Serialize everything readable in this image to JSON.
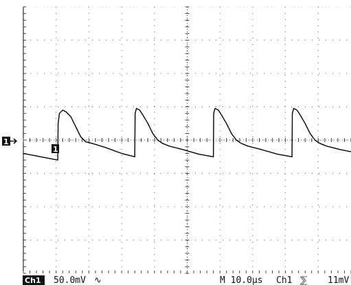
{
  "chart_data": {
    "type": "line",
    "title": "",
    "xlabel": "",
    "ylabel": "",
    "grid": true,
    "divisions": {
      "x": 10,
      "y": 8
    },
    "xlim_div": [
      0,
      10
    ],
    "ylim_div": [
      -4,
      4
    ],
    "series": [
      {
        "x_div": [
          0.0,
          1.05,
          1.06,
          1.1,
          1.2,
          1.3,
          1.45,
          1.6,
          1.75,
          1.9,
          2.1,
          2.5,
          3.0,
          3.4,
          3.41,
          3.45,
          3.55,
          3.65,
          3.8,
          3.95,
          4.1,
          4.25,
          4.45,
          4.85,
          5.35,
          5.8,
          5.81,
          5.85,
          5.95,
          6.05,
          6.2,
          6.35,
          6.5,
          6.65,
          6.85,
          7.25,
          7.75,
          8.2,
          8.21,
          8.25,
          8.35,
          8.45,
          8.6,
          8.75,
          8.9,
          9.05,
          9.25,
          9.65,
          10.0
        ],
        "y_div": [
          -0.4,
          -0.6,
          0.5,
          0.8,
          0.9,
          0.85,
          0.7,
          0.4,
          0.1,
          -0.05,
          -0.1,
          -0.22,
          -0.4,
          -0.5,
          0.8,
          0.95,
          0.9,
          0.75,
          0.5,
          0.2,
          0.0,
          -0.1,
          -0.18,
          -0.28,
          -0.42,
          -0.5,
          0.8,
          0.95,
          0.9,
          0.75,
          0.5,
          0.2,
          0.0,
          -0.1,
          -0.18,
          -0.28,
          -0.42,
          -0.5,
          0.8,
          0.95,
          0.9,
          0.75,
          0.5,
          0.2,
          0.0,
          -0.1,
          -0.18,
          -0.28,
          -0.35
        ]
      }
    ],
    "markers": {
      "channel_ground": "1",
      "trigger_point": "1"
    }
  },
  "status_bar": {
    "channel_label": "Ch1",
    "scale": "50.0mV",
    "coupling_symbol": "∿",
    "timebase": "M 10.0µs",
    "trigger_source": "Ch1",
    "trigger_slope_symbol": "⅀",
    "trigger_level": "11mV"
  },
  "colors": {
    "trace": "#000000",
    "grid": "#555555",
    "background": "#ffffff"
  }
}
